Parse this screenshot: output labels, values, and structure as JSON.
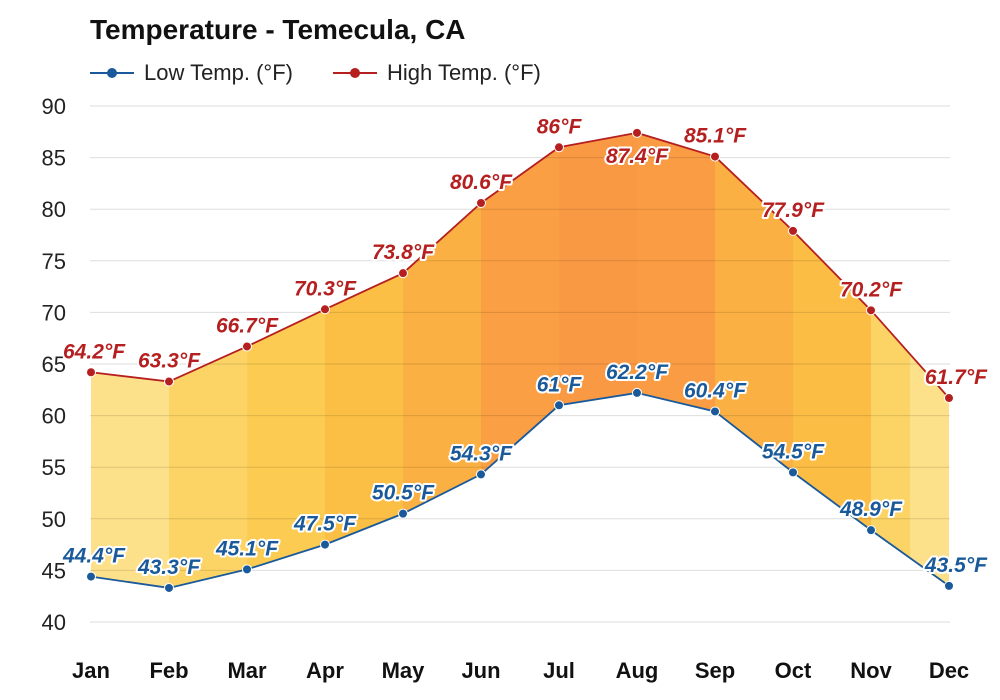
{
  "chart_data": {
    "type": "line",
    "title": "Temperature - Temecula, CA",
    "categories": [
      "Jan",
      "Feb",
      "Mar",
      "Apr",
      "May",
      "Jun",
      "Jul",
      "Aug",
      "Sep",
      "Oct",
      "Nov",
      "Dec"
    ],
    "series": [
      {
        "name": "Low Temp. (°F)",
        "values": [
          44.4,
          43.3,
          45.1,
          47.5,
          50.5,
          54.3,
          61,
          62.2,
          60.4,
          54.5,
          48.9,
          43.5
        ],
        "labels": [
          "44.4°F",
          "43.3°F",
          "45.1°F",
          "47.5°F",
          "50.5°F",
          "54.3°F",
          "61°F",
          "62.2°F",
          "60.4°F",
          "54.5°F",
          "48.9°F",
          "43.5°F"
        ],
        "color": "#1a5a9a"
      },
      {
        "name": "High Temp. (°F)",
        "values": [
          64.2,
          63.3,
          66.7,
          70.3,
          73.8,
          80.6,
          86,
          87.4,
          85.1,
          77.9,
          70.2,
          61.7
        ],
        "labels": [
          "64.2°F",
          "63.3°F",
          "66.7°F",
          "70.3°F",
          "73.8°F",
          "80.6°F",
          "86°F",
          "87.4°F",
          "85.1°F",
          "77.9°F",
          "70.2°F",
          "61.7°F"
        ],
        "color": "#b51f1f"
      }
    ],
    "ylim": [
      40,
      90
    ],
    "yticks": [
      "90",
      "85",
      "80",
      "75",
      "70",
      "65",
      "60",
      "55",
      "50",
      "45",
      "40"
    ],
    "grid": true,
    "legend": "top-left",
    "band_colors": [
      "#fde08a",
      "#fcd466",
      "#fccb52",
      "#fcbf45",
      "#fbb043",
      "#fa9f44",
      "#fa9944",
      "#fa9c44",
      "#fbb043",
      "#fcbd45",
      "#fcd466",
      "#fde08a"
    ]
  }
}
